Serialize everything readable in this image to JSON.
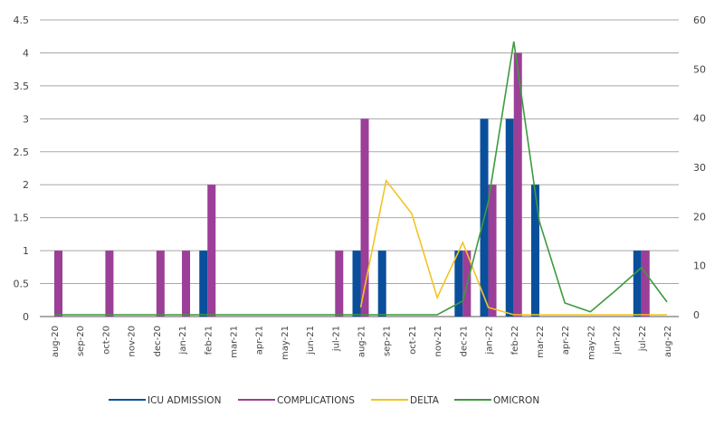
{
  "chart_data": {
    "type": "bar",
    "title": "",
    "categories": [
      "aug-20",
      "sep-20",
      "oct-20",
      "nov-20",
      "dec-20",
      "jan-21",
      "feb-21",
      "mar-21",
      "apr-21",
      "may-21",
      "jun-21",
      "jul-21",
      "aug-21",
      "sep-21",
      "oct-21",
      "nov-21",
      "dec-21",
      "jan-22",
      "feb-22",
      "mar-22",
      "apr-22",
      "may-22",
      "jun-22",
      "jul-22",
      "aug-22"
    ],
    "y_left": {
      "ylim": [
        0,
        4.5
      ],
      "ticks": [
        "0",
        "0.5",
        "1",
        "1.5",
        "2",
        "2.5",
        "3",
        "3.5",
        "4",
        "4.5"
      ]
    },
    "y_right": {
      "ylim": [
        0,
        60
      ],
      "ticks": [
        "0",
        "10",
        "20",
        "30",
        "40",
        "50",
        "60"
      ]
    },
    "grid": true,
    "legend": "bottom",
    "series": [
      {
        "name": "ICU ADMISSION",
        "type": "bar",
        "axis": "left",
        "color": "#0a4f9c",
        "values": [
          0,
          0,
          0,
          0,
          0,
          0,
          1,
          0,
          0,
          0,
          0,
          0,
          1,
          1,
          0,
          0,
          1,
          3,
          3,
          2,
          0,
          0,
          0,
          1,
          0
        ]
      },
      {
        "name": "COMPLICATIONS",
        "type": "bar",
        "axis": "left",
        "color": "#9b3f98",
        "values": [
          1,
          0,
          1,
          0,
          1,
          1,
          2,
          0,
          0,
          0,
          0,
          1,
          3,
          0,
          0,
          0,
          1,
          2,
          4,
          0,
          0,
          0,
          0,
          1,
          0
        ]
      },
      {
        "name": "DELTA",
        "type": "line",
        "axis": "right",
        "color": "#f2c426",
        "values": [
          null,
          null,
          null,
          null,
          null,
          null,
          null,
          null,
          null,
          null,
          null,
          null,
          1.5,
          27.3,
          20.6,
          3.5,
          14.7,
          1.5,
          0,
          0,
          0,
          0,
          0,
          0,
          0
        ]
      },
      {
        "name": "OMICRON",
        "type": "line",
        "axis": "right",
        "color": "#3e9a3e",
        "values": [
          0,
          0,
          0,
          0,
          0,
          0,
          0,
          0,
          0,
          0,
          0,
          0,
          0,
          0,
          0,
          0,
          2.8,
          23,
          55.6,
          19,
          2.4,
          0.6,
          5,
          9.6,
          2.6
        ]
      }
    ]
  }
}
